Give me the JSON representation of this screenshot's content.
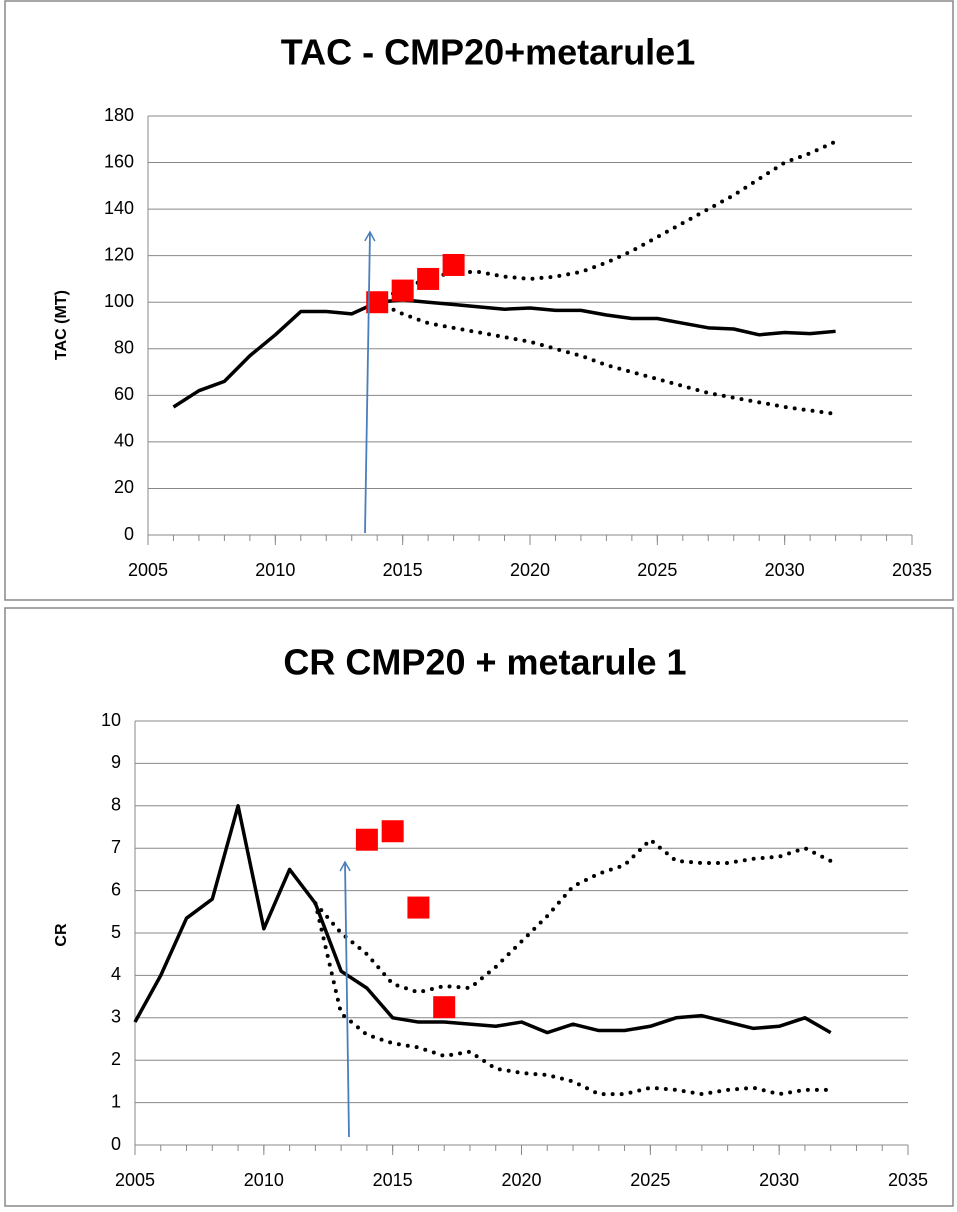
{
  "chart_data": [
    {
      "type": "line",
      "title": "TAC - CMP20+metarule1",
      "y_label": "TAC (MT)",
      "xlim": [
        2005,
        2035
      ],
      "xticks": [
        2005,
        2010,
        2015,
        2020,
        2025,
        2030,
        2035
      ],
      "ylim": [
        0,
        180
      ],
      "yticks": [
        0,
        20,
        40,
        60,
        80,
        100,
        120,
        140,
        160,
        180
      ],
      "grid": true,
      "series": [
        {
          "style": "solid",
          "color": "#000000",
          "x": [
            2006,
            2007,
            2008,
            2009,
            2010,
            2011,
            2012,
            2013,
            2014,
            2015,
            2016,
            2017,
            2018,
            2019,
            2020,
            2021,
            2022,
            2023,
            2024,
            2025,
            2026,
            2027,
            2028,
            2029,
            2030,
            2031,
            2032
          ],
          "values": [
            55,
            62,
            66,
            77,
            86,
            96,
            96,
            95,
            100,
            101,
            100,
            99,
            98,
            97,
            97.5,
            96.5,
            96.5,
            94.5,
            93,
            93,
            91,
            89,
            88.5,
            86,
            87,
            86.5,
            87.5
          ]
        },
        {
          "style": "dotted",
          "color": "#000000",
          "x": [
            2014,
            2015,
            2016,
            2017,
            2018,
            2019,
            2020,
            2021,
            2022,
            2023,
            2024,
            2025,
            2026,
            2027,
            2028,
            2029,
            2030,
            2031,
            2032
          ],
          "values": [
            100,
            106,
            110,
            113,
            113,
            111,
            110,
            111,
            113,
            117,
            122,
            128,
            134,
            140,
            146,
            153,
            160,
            164,
            169
          ]
        },
        {
          "style": "dotted",
          "color": "#000000",
          "x": [
            2014,
            2015,
            2016,
            2017,
            2018,
            2019,
            2020,
            2021,
            2022,
            2023,
            2024,
            2025,
            2026,
            2027,
            2028,
            2029,
            2030,
            2031,
            2032
          ],
          "values": [
            100,
            95,
            91,
            89,
            87,
            85,
            83,
            80,
            77,
            73,
            70,
            67,
            64,
            61,
            59,
            57,
            55,
            53.5,
            52
          ]
        },
        {
          "style": "square",
          "color": "#ff0000",
          "x": [
            2014,
            2015,
            2016,
            2017
          ],
          "values": [
            100,
            105,
            110,
            116
          ]
        }
      ]
    },
    {
      "type": "line",
      "title": "CR CMP20 + metarule 1",
      "y_label": "CR",
      "xlim": [
        2005,
        2035
      ],
      "xticks": [
        2005,
        2010,
        2015,
        2020,
        2025,
        2030,
        2035
      ],
      "ylim": [
        0,
        10
      ],
      "yticks": [
        0,
        1,
        2,
        3,
        4,
        5,
        6,
        7,
        8,
        9,
        10
      ],
      "grid": true,
      "series": [
        {
          "style": "solid",
          "color": "#000000",
          "x": [
            2005,
            2006,
            2007,
            2008,
            2009,
            2010,
            2011,
            2012,
            2013,
            2014,
            2015,
            2016,
            2017,
            2018,
            2019,
            2020,
            2021,
            2022,
            2023,
            2024,
            2025,
            2026,
            2027,
            2028,
            2029,
            2030,
            2031,
            2032
          ],
          "values": [
            2.9,
            4.0,
            5.35,
            5.8,
            8.0,
            5.1,
            6.5,
            5.7,
            4.1,
            3.7,
            3.0,
            2.9,
            2.9,
            2.85,
            2.8,
            2.9,
            2.65,
            2.85,
            2.7,
            2.7,
            2.8,
            3.0,
            3.05,
            2.9,
            2.75,
            2.8,
            3.0,
            2.65
          ]
        },
        {
          "style": "dotted",
          "color": "#000000",
          "x": [
            2012,
            2013,
            2014,
            2015,
            2016,
            2017,
            2018,
            2019,
            2020,
            2021,
            2022,
            2023,
            2024,
            2025,
            2026,
            2027,
            2028,
            2029,
            2030,
            2031,
            2032
          ],
          "values": [
            5.7,
            5.0,
            4.5,
            3.8,
            3.6,
            3.75,
            3.7,
            4.2,
            4.8,
            5.4,
            6.1,
            6.4,
            6.6,
            7.2,
            6.7,
            6.65,
            6.65,
            6.75,
            6.8,
            7.0,
            6.7
          ]
        },
        {
          "style": "dotted",
          "color": "#000000",
          "x": [
            2012,
            2013,
            2014,
            2015,
            2016,
            2017,
            2018,
            2019,
            2020,
            2021,
            2022,
            2023,
            2024,
            2025,
            2026,
            2027,
            2028,
            2029,
            2030,
            2031,
            2032
          ],
          "values": [
            5.7,
            3.1,
            2.6,
            2.4,
            2.3,
            2.1,
            2.2,
            1.8,
            1.7,
            1.65,
            1.5,
            1.2,
            1.2,
            1.35,
            1.3,
            1.2,
            1.3,
            1.35,
            1.2,
            1.3,
            1.3
          ]
        },
        {
          "style": "square",
          "color": "#ff0000",
          "x": [
            2014,
            2015,
            2016,
            2017
          ],
          "values": [
            7.2,
            7.4,
            5.6,
            3.25
          ]
        }
      ]
    }
  ]
}
